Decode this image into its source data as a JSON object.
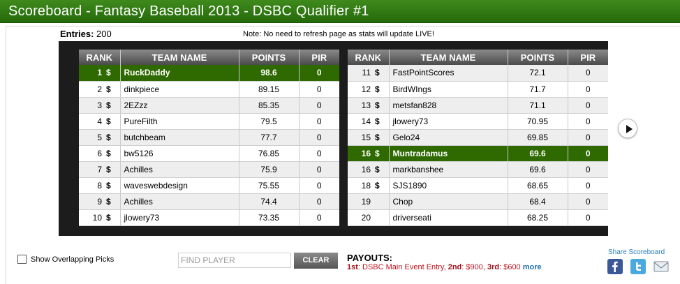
{
  "header": {
    "title": "Scoreboard - Fantasy Baseball 2013 - DSBC Qualifier #1"
  },
  "summary": {
    "entries_label": "Entries:",
    "entries_value": "200",
    "note": "Note: No need to refresh page as stats will update LIVE!"
  },
  "columns": {
    "rank": "RANK",
    "team": "TEAM NAME",
    "points": "POINTS",
    "pir": "PIR"
  },
  "dollar_symbol": "$",
  "left_rows": [
    {
      "rank": "1",
      "team": "RuckDaddy",
      "points": "98.6",
      "pir": "0",
      "highlight": true
    },
    {
      "rank": "2",
      "team": "dinkpiece",
      "points": "89.15",
      "pir": "0"
    },
    {
      "rank": "3",
      "team": "2EZzz",
      "points": "85.35",
      "pir": "0"
    },
    {
      "rank": "4",
      "team": "PureFilth",
      "points": "79.5",
      "pir": "0"
    },
    {
      "rank": "5",
      "team": "butchbeam",
      "points": "77.7",
      "pir": "0"
    },
    {
      "rank": "6",
      "team": "bw5126",
      "points": "76.85",
      "pir": "0"
    },
    {
      "rank": "7",
      "team": "Achilles",
      "points": "75.9",
      "pir": "0"
    },
    {
      "rank": "8",
      "team": "waveswebdesign",
      "points": "75.55",
      "pir": "0"
    },
    {
      "rank": "9",
      "team": "Achilles",
      "points": "74.4",
      "pir": "0"
    },
    {
      "rank": "10",
      "team": "jlowery73",
      "points": "73.35",
      "pir": "0"
    }
  ],
  "right_rows": [
    {
      "rank": "11",
      "team": "FastPointScores",
      "points": "72.1",
      "pir": "0",
      "dollar": true
    },
    {
      "rank": "12",
      "team": "BirdWIngs",
      "points": "71.7",
      "pir": "0",
      "dollar": true
    },
    {
      "rank": "13",
      "team": "metsfan828",
      "points": "71.1",
      "pir": "0",
      "dollar": true
    },
    {
      "rank": "14",
      "team": "jlowery73",
      "points": "70.95",
      "pir": "0",
      "dollar": true
    },
    {
      "rank": "15",
      "team": "Gelo24",
      "points": "69.85",
      "pir": "0",
      "dollar": true
    },
    {
      "rank": "16",
      "team": "Muntradamus",
      "points": "69.6",
      "pir": "0",
      "dollar": true,
      "highlight": true
    },
    {
      "rank": "16",
      "team": "markbanshee",
      "points": "69.6",
      "pir": "0",
      "dollar": true
    },
    {
      "rank": "18",
      "team": "SJS1890",
      "points": "68.65",
      "pir": "0",
      "dollar": true
    },
    {
      "rank": "19",
      "team": "Chop",
      "points": "68.4",
      "pir": "0",
      "dollar": false
    },
    {
      "rank": "20",
      "team": "driverseati",
      "points": "68.25",
      "pir": "0",
      "dollar": false
    }
  ],
  "icons": {
    "next": "play-arrow-icon",
    "facebook": "facebook-icon",
    "twitter": "twitter-icon",
    "email": "email-icon"
  },
  "footer": {
    "overlap_label": "Show Overlapping Picks",
    "find_placeholder": "FIND PLAYER",
    "clear_label": "CLEAR",
    "payouts_title": "PAYOUTS:",
    "payout1_place": "1st",
    "payout1_text": ": DSBC Main Event Entry, ",
    "payout2_place": "2nd",
    "payout2_text": ": $900, ",
    "payout3_place": "3rd",
    "payout3_text": ": $600 ",
    "more_label": "more",
    "share_label": "Share Scoreboard"
  },
  "colors": {
    "header_green": "#256a0b",
    "highlight_green": "#2e6a00",
    "dollar_blue": "#2f86c2",
    "payout_red": "#c0141e",
    "link_blue": "#1f6fb5"
  }
}
